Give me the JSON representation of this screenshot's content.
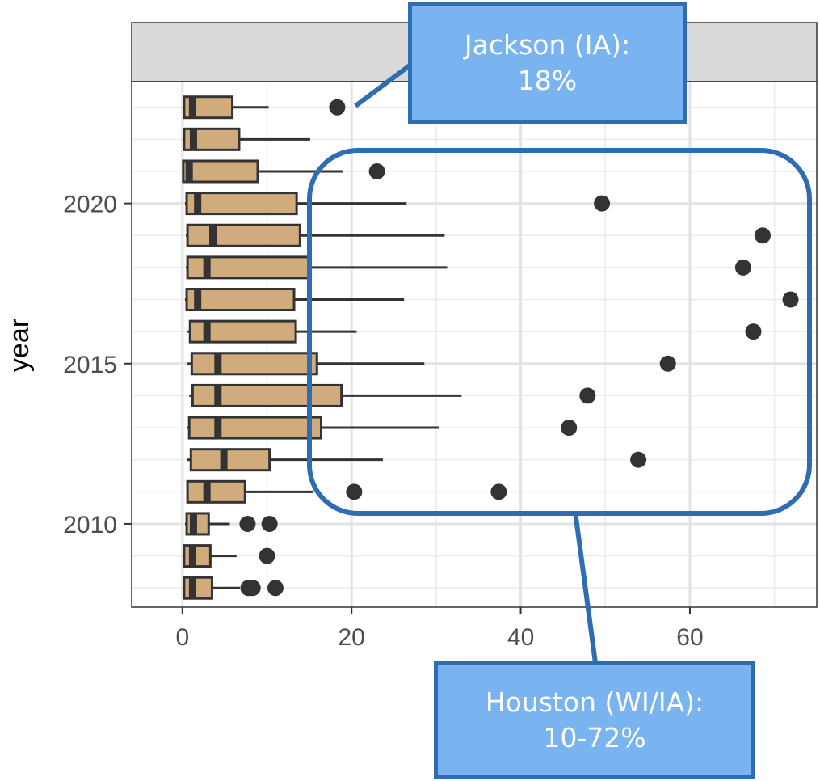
{
  "chart_data": {
    "type": "boxplot",
    "orientation": "horizontal",
    "title": "",
    "facet_strip_label": "",
    "xlabel": "",
    "ylabel": "year",
    "xlim": [
      -6,
      75
    ],
    "ylim": [
      2007.4,
      2023.8
    ],
    "x_ticks": [
      0,
      20,
      40,
      60
    ],
    "y_ticks": [
      2010,
      2015,
      2020
    ],
    "grid": true,
    "box_fill": "#d2ab7c",
    "box_stroke": "#333333",
    "series": [
      {
        "year": 2008,
        "whisker_low": 0,
        "q1": 0.2,
        "median": 1.2,
        "q3": 3.5,
        "whisker_high": 6.8,
        "outliers": [
          7.8,
          8.3,
          11
        ]
      },
      {
        "year": 2009,
        "whisker_low": 0,
        "q1": 0.2,
        "median": 1.2,
        "q3": 3.3,
        "whisker_high": 6.4,
        "outliers": [
          10
        ]
      },
      {
        "year": 2010,
        "whisker_low": 0.3,
        "q1": 0.5,
        "median": 1.3,
        "q3": 3.1,
        "whisker_high": 5.6,
        "outliers": [
          7.7,
          10.3
        ]
      },
      {
        "year": 2011,
        "whisker_low": 0.5,
        "q1": 0.6,
        "median": 2.9,
        "q3": 7.4,
        "whisker_high": 15.5,
        "outliers": [
          20.3,
          37.4
        ]
      },
      {
        "year": 2012,
        "whisker_low": 0.5,
        "q1": 1,
        "median": 4.9,
        "q3": 10.3,
        "whisker_high": 23.7,
        "outliers": [
          53.9
        ]
      },
      {
        "year": 2013,
        "whisker_low": 0.5,
        "q1": 0.8,
        "median": 4.2,
        "q3": 16.4,
        "whisker_high": 30.3,
        "outliers": [
          45.7
        ]
      },
      {
        "year": 2014,
        "whisker_low": 0.8,
        "q1": 1.2,
        "median": 4.2,
        "q3": 18.8,
        "whisker_high": 33,
        "outliers": [
          47.9
        ]
      },
      {
        "year": 2015,
        "whisker_low": 0.6,
        "q1": 1.1,
        "median": 4.2,
        "q3": 15.9,
        "whisker_high": 28.6,
        "outliers": [
          57.4
        ]
      },
      {
        "year": 2016,
        "whisker_low": 0.6,
        "q1": 0.9,
        "median": 2.9,
        "q3": 13.4,
        "whisker_high": 20.6,
        "outliers": [
          67.5
        ]
      },
      {
        "year": 2017,
        "whisker_low": 0.3,
        "q1": 0.5,
        "median": 1.8,
        "q3": 13.2,
        "whisker_high": 26.2,
        "outliers": [
          71.9
        ]
      },
      {
        "year": 2018,
        "whisker_low": 0.4,
        "q1": 0.6,
        "median": 2.9,
        "q3": 15.1,
        "whisker_high": 31.3,
        "outliers": [
          66.3
        ]
      },
      {
        "year": 2019,
        "whisker_low": 0.4,
        "q1": 0.6,
        "median": 3.6,
        "q3": 13.9,
        "whisker_high": 31,
        "outliers": [
          68.6
        ]
      },
      {
        "year": 2020,
        "whisker_low": 0.3,
        "q1": 0.5,
        "median": 1.8,
        "q3": 13.5,
        "whisker_high": 26.5,
        "outliers": [
          49.6
        ]
      },
      {
        "year": 2021,
        "whisker_low": 0,
        "q1": 0.1,
        "median": 0.8,
        "q3": 8.9,
        "whisker_high": 19,
        "outliers": [
          23
        ]
      },
      {
        "year": 2022,
        "whisker_low": 0,
        "q1": 0.2,
        "median": 1.3,
        "q3": 6.7,
        "whisker_high": 15.1,
        "outliers": []
      },
      {
        "year": 2023,
        "whisker_low": 0,
        "q1": 0.2,
        "median": 1.2,
        "q3": 5.9,
        "whisker_high": 10.2,
        "outliers": [
          18.3
        ]
      }
    ],
    "annotations": [
      {
        "id": "jackson",
        "line1": "Jackson (IA):",
        "line2": "18%"
      },
      {
        "id": "houston",
        "line1": "Houston (WI/IA):",
        "line2": "10-72%"
      }
    ],
    "annotation_style": {
      "fill": "#7ab4f0",
      "stroke": "#2e6db4"
    }
  }
}
